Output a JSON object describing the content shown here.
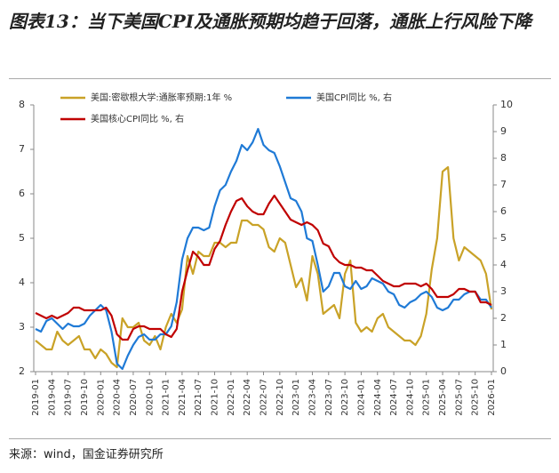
{
  "chart_data": {
    "type": "line",
    "title": "图表13：当下美国CPI及通胀预期均趋于回落，通胀上行风险下降",
    "source": "来源：wind，国金证券研究所",
    "categories": [
      "2019-01",
      null,
      null,
      "2019-04",
      null,
      null,
      "2019-07",
      null,
      null,
      "2019-10",
      null,
      null,
      "2020-01",
      null,
      null,
      "2020-04",
      null,
      null,
      "2020-07",
      null,
      null,
      "2020-10",
      null,
      null,
      "2021-01",
      null,
      null,
      "2021-04",
      null,
      null,
      "2021-07",
      null,
      null,
      "2021-10",
      null,
      null,
      "2022-01",
      null,
      null,
      "2022-04",
      null,
      null,
      "2022-07",
      null,
      null,
      "2022-10",
      null,
      null,
      "2023-01",
      null,
      null,
      "2023-04",
      null,
      null,
      "2023-07",
      null,
      null,
      "2023-10",
      null,
      null,
      "2024-01",
      null,
      null,
      "2024-04",
      null,
      null,
      "2024-07",
      null,
      null,
      "2024-10",
      null,
      null,
      "2025-01",
      null,
      null,
      "2025-04",
      null,
      null,
      "2025-07",
      null,
      null,
      "2025-10",
      null,
      null,
      "2026-01"
    ],
    "series": [
      {
        "name": "美国:密歇根大学:通胀率预期:1年 %",
        "color": "#c9a227",
        "axis": "y",
        "values": [
          2.7,
          2.6,
          2.5,
          2.5,
          2.9,
          2.7,
          2.6,
          2.7,
          2.8,
          2.5,
          2.5,
          2.3,
          2.5,
          2.4,
          2.2,
          2.1,
          3.2,
          3.0,
          3.0,
          3.1,
          2.7,
          2.6,
          2.8,
          2.5,
          3.0,
          3.3,
          3.1,
          3.4,
          4.6,
          4.2,
          4.7,
          4.6,
          4.6,
          4.9,
          4.9,
          4.8,
          4.9,
          4.9,
          5.4,
          5.4,
          5.3,
          5.3,
          5.2,
          4.8,
          4.7,
          5.0,
          4.9,
          4.4,
          3.9,
          4.1,
          3.6,
          4.6,
          4.2,
          3.3,
          3.4,
          3.5,
          3.2,
          4.2,
          4.5,
          3.1,
          2.9,
          3.0,
          2.9,
          3.2,
          3.3,
          3.0,
          2.9,
          2.8,
          2.7,
          2.7,
          2.6,
          2.8,
          3.3,
          4.3,
          5.0,
          6.5,
          6.6,
          5.0,
          4.5,
          4.8,
          4.7,
          4.6,
          4.5,
          4.2,
          3.4
        ]
      },
      {
        "name": "美国CPI同比 %, 右",
        "color": "#1f7ad6",
        "axis": "y2",
        "values": [
          1.6,
          1.5,
          1.9,
          2.0,
          1.8,
          1.6,
          1.8,
          1.7,
          1.7,
          1.8,
          2.1,
          2.3,
          2.5,
          2.3,
          1.5,
          0.3,
          0.1,
          0.6,
          1.0,
          1.3,
          1.4,
          1.2,
          1.2,
          1.4,
          1.4,
          1.7,
          2.6,
          4.2,
          5.0,
          5.4,
          5.4,
          5.3,
          5.4,
          6.2,
          6.8,
          7.0,
          7.5,
          7.9,
          8.5,
          8.3,
          8.6,
          9.1,
          8.5,
          8.3,
          8.2,
          7.7,
          7.1,
          6.5,
          6.4,
          6.0,
          5.0,
          4.9,
          4.0,
          3.0,
          3.2,
          3.7,
          3.7,
          3.2,
          3.1,
          3.4,
          3.1,
          3.2,
          3.5,
          3.4,
          3.3,
          3.0,
          2.9,
          2.5,
          2.4,
          2.6,
          2.7,
          2.9,
          3.0,
          2.8,
          2.4,
          2.3,
          2.4,
          2.7,
          2.7,
          2.9,
          3.0,
          3.0,
          2.7,
          2.7,
          2.4
        ]
      },
      {
        "name": "美国核心CPI同比 %, 右",
        "color": "#c00000",
        "axis": "y2",
        "values": [
          2.2,
          2.1,
          2.0,
          2.1,
          2.0,
          2.1,
          2.2,
          2.4,
          2.4,
          2.3,
          2.3,
          2.3,
          2.3,
          2.4,
          2.1,
          1.4,
          1.2,
          1.2,
          1.6,
          1.7,
          1.7,
          1.6,
          1.6,
          1.6,
          1.4,
          1.3,
          1.6,
          3.0,
          3.8,
          4.5,
          4.3,
          4.0,
          4.0,
          4.6,
          4.9,
          5.5,
          6.0,
          6.4,
          6.5,
          6.2,
          6.0,
          5.9,
          5.9,
          6.3,
          6.6,
          6.3,
          6.0,
          5.7,
          5.6,
          5.5,
          5.6,
          5.5,
          5.3,
          4.8,
          4.7,
          4.3,
          4.1,
          4.0,
          4.0,
          3.9,
          3.9,
          3.8,
          3.8,
          3.6,
          3.4,
          3.3,
          3.2,
          3.2,
          3.3,
          3.3,
          3.3,
          3.2,
          3.3,
          3.1,
          2.8,
          2.8,
          2.8,
          2.9,
          3.1,
          3.1,
          3.0,
          3.0,
          2.6,
          2.6,
          2.5
        ]
      }
    ],
    "ylim": [
      2,
      8
    ],
    "yticks": [
      2,
      3,
      4,
      5,
      6,
      7,
      8
    ],
    "y2lim": [
      0,
      10
    ],
    "y2ticks": [
      0,
      1,
      2,
      3,
      4,
      5,
      6,
      7,
      8,
      9,
      10
    ]
  }
}
